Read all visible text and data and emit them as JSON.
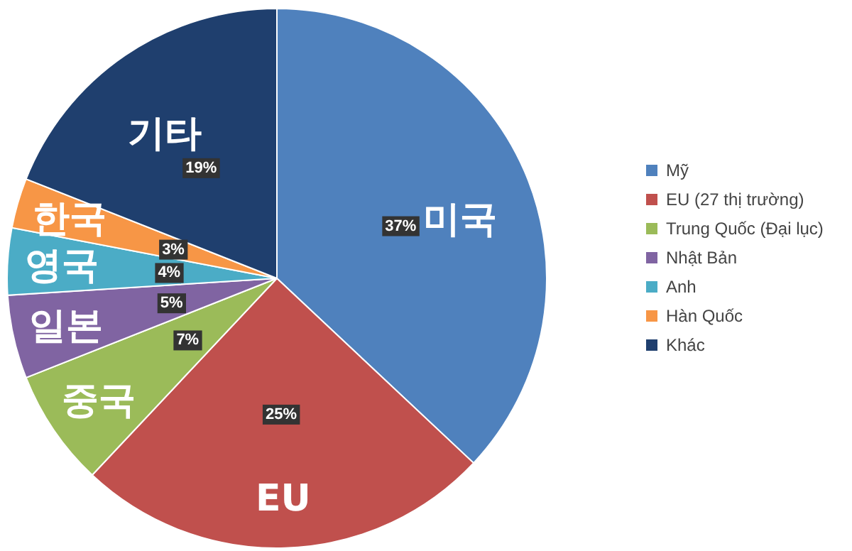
{
  "chart_data": {
    "type": "pie",
    "categories": [
      "Mỹ",
      "EU (27 thị trường)",
      "Trung Quốc (Đại lục)",
      "Nhật Bản",
      "Anh",
      "Hàn Quốc",
      "Khác"
    ],
    "values": [
      37,
      25,
      7,
      5,
      4,
      3,
      19
    ],
    "value_labels": [
      "37%",
      "25%",
      "7%",
      "5%",
      "4%",
      "3%",
      "19%"
    ],
    "colors": [
      "#4f81bd",
      "#c0504d",
      "#9bbb59",
      "#8064a2",
      "#4bacc6",
      "#f79646",
      "#1f3f6e"
    ],
    "annotations": [
      {
        "text": "미국",
        "x": "Mỹ"
      },
      {
        "text": "EU",
        "x": "EU (27 thị trường)"
      },
      {
        "text": "중국",
        "x": "Trung Quốc (Đại lục)"
      },
      {
        "text": "일본",
        "x": "Nhật Bản"
      },
      {
        "text": "영국",
        "x": "Anh"
      },
      {
        "text": "한국",
        "x": "Hàn Quốc"
      },
      {
        "text": "기타",
        "x": "Khác"
      }
    ],
    "legend": "right"
  }
}
